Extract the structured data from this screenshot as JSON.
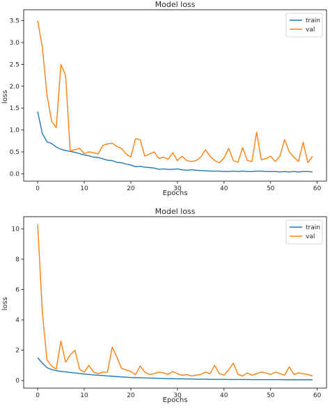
{
  "chart_data": [
    {
      "type": "line",
      "title": "Model loss",
      "xlabel": "Epochs",
      "ylabel": "loss",
      "xlim": [
        -3,
        62
      ],
      "ylim": [
        -0.17,
        3.75
      ],
      "xticks": [
        0,
        10,
        20,
        30,
        40,
        50,
        60
      ],
      "yticks": [
        0.0,
        0.5,
        1.0,
        1.5,
        2.0,
        2.5,
        3.0,
        3.5
      ],
      "yticks_text": [
        "0.0",
        "0.5",
        "1.0",
        "1.5",
        "2.0",
        "2.5",
        "3.0",
        "3.5"
      ],
      "legend": "top-right",
      "series": [
        {
          "name": "train",
          "color": "#1f77b4",
          "values": [
            1.42,
            0.92,
            0.73,
            0.69,
            0.61,
            0.56,
            0.53,
            0.51,
            0.49,
            0.46,
            0.43,
            0.41,
            0.38,
            0.37,
            0.34,
            0.31,
            0.3,
            0.26,
            0.25,
            0.22,
            0.2,
            0.16,
            0.17,
            0.15,
            0.14,
            0.13,
            0.1,
            0.11,
            0.1,
            0.1,
            0.11,
            0.09,
            0.08,
            0.09,
            0.08,
            0.07,
            0.07,
            0.06,
            0.06,
            0.06,
            0.05,
            0.05,
            0.06,
            0.05,
            0.06,
            0.05,
            0.05,
            0.06,
            0.06,
            0.05,
            0.05,
            0.05,
            0.04,
            0.05,
            0.04,
            0.05,
            0.04,
            0.05,
            0.05,
            0.04
          ]
        },
        {
          "name": "val",
          "color": "#ff7f0e",
          "values": [
            3.5,
            2.9,
            1.8,
            1.2,
            1.05,
            2.5,
            2.25,
            0.52,
            0.55,
            0.58,
            0.46,
            0.5,
            0.48,
            0.45,
            0.65,
            0.68,
            0.7,
            0.62,
            0.58,
            0.45,
            0.38,
            0.8,
            0.78,
            0.4,
            0.45,
            0.5,
            0.35,
            0.38,
            0.33,
            0.48,
            0.3,
            0.4,
            0.3,
            0.28,
            0.3,
            0.38,
            0.55,
            0.4,
            0.3,
            0.25,
            0.36,
            0.58,
            0.3,
            0.26,
            0.6,
            0.3,
            0.28,
            0.95,
            0.32,
            0.35,
            0.4,
            0.28,
            0.4,
            0.78,
            0.5,
            0.38,
            0.28,
            0.72,
            0.25,
            0.4
          ]
        }
      ]
    },
    {
      "type": "line",
      "title": "Model loss",
      "xlabel": "Epochs",
      "ylabel": "loss",
      "xlim": [
        -3,
        62
      ],
      "ylim": [
        -0.5,
        10.8
      ],
      "xticks": [
        0,
        10,
        20,
        30,
        40,
        50,
        60
      ],
      "yticks": [
        0,
        2,
        4,
        6,
        8,
        10
      ],
      "yticks_text": [
        "0",
        "2",
        "4",
        "6",
        "8",
        "10"
      ],
      "legend": "top-right",
      "series": [
        {
          "name": "train",
          "color": "#1f77b4",
          "values": [
            1.5,
            1.15,
            0.85,
            0.72,
            0.65,
            0.6,
            0.57,
            0.53,
            0.5,
            0.46,
            0.43,
            0.4,
            0.37,
            0.35,
            0.33,
            0.3,
            0.28,
            0.26,
            0.24,
            0.22,
            0.2,
            0.19,
            0.18,
            0.17,
            0.16,
            0.15,
            0.14,
            0.13,
            0.12,
            0.12,
            0.11,
            0.11,
            0.1,
            0.1,
            0.09,
            0.09,
            0.09,
            0.08,
            0.08,
            0.08,
            0.08,
            0.07,
            0.07,
            0.07,
            0.07,
            0.07,
            0.06,
            0.06,
            0.06,
            0.06,
            0.06,
            0.06,
            0.06,
            0.05,
            0.05,
            0.05,
            0.05,
            0.05,
            0.05,
            0.05
          ]
        },
        {
          "name": "val",
          "color": "#ff7f0e",
          "values": [
            10.3,
            4.5,
            1.35,
            0.95,
            0.75,
            2.6,
            1.2,
            1.7,
            2.0,
            0.75,
            0.55,
            1.0,
            0.55,
            0.45,
            0.55,
            0.55,
            2.2,
            1.55,
            0.8,
            0.7,
            0.6,
            0.38,
            0.95,
            0.55,
            0.4,
            0.45,
            0.55,
            0.5,
            0.4,
            0.6,
            0.45,
            0.35,
            0.4,
            0.3,
            0.35,
            0.4,
            0.55,
            0.45,
            1.0,
            0.45,
            0.35,
            0.7,
            1.15,
            0.4,
            0.3,
            0.5,
            0.35,
            0.45,
            0.55,
            0.5,
            0.4,
            0.55,
            0.45,
            0.35,
            0.9,
            0.4,
            0.5,
            0.45,
            0.4,
            0.3
          ]
        }
      ]
    }
  ]
}
